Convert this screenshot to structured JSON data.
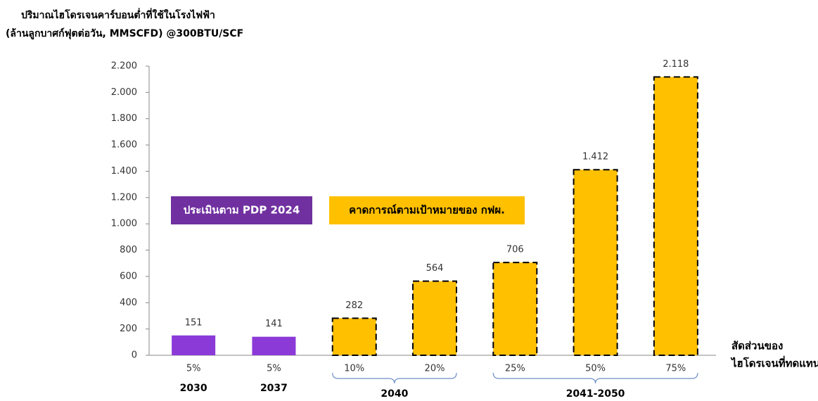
{
  "chart_data": {
    "type": "bar",
    "title": [
      "ปริมาณไฮโดรเจนคาร์บอนต่ำที่ใช้ในโรงไฟฟ้า",
      "(ล้านลูกบาศก์ฟุตต่อวัน, MMSCFD) @300BTU/SCF"
    ],
    "x_label": [
      "สัดส่วนของ",
      "ไฮโดรเจนที่ทดแทน"
    ],
    "categories": [
      "5%",
      "5%",
      "10%",
      "20%",
      "25%",
      "50%",
      "75%"
    ],
    "groups": [
      {
        "label": "2030",
        "count": 1
      },
      {
        "label": "2037",
        "count": 1
      },
      {
        "label": "2040",
        "count": 2
      },
      {
        "label": "2041-2050",
        "count": 3
      }
    ],
    "series": [
      {
        "name": "ประเมินตาม PDP 2024",
        "color": "#8b3ad8",
        "border": "none",
        "values": [
          151,
          141,
          null,
          null,
          null,
          null,
          null
        ]
      },
      {
        "name": "คาดการณ์ตามเป้าหมายของ กฟผ.",
        "color": "#ffc000",
        "border": "dashed",
        "values": [
          null,
          null,
          282,
          564,
          706,
          1412,
          2118
        ],
        "value_labels": [
          null,
          null,
          null,
          null,
          null,
          "1.412",
          "2.118"
        ]
      }
    ],
    "ylim": [
      0,
      2200
    ],
    "yticks": [
      0,
      200,
      400,
      600,
      800,
      {
        "value": 1000,
        "label": "1.000"
      },
      {
        "value": 1200,
        "label": "1.200"
      },
      {
        "value": 1400,
        "label": "1.400"
      },
      {
        "value": 1600,
        "label": "1.600"
      },
      {
        "value": 1800,
        "label": "1.800"
      },
      {
        "value": 2000,
        "label": "2.000"
      },
      {
        "value": 2200,
        "label": "2.200"
      }
    ],
    "grid": false
  }
}
